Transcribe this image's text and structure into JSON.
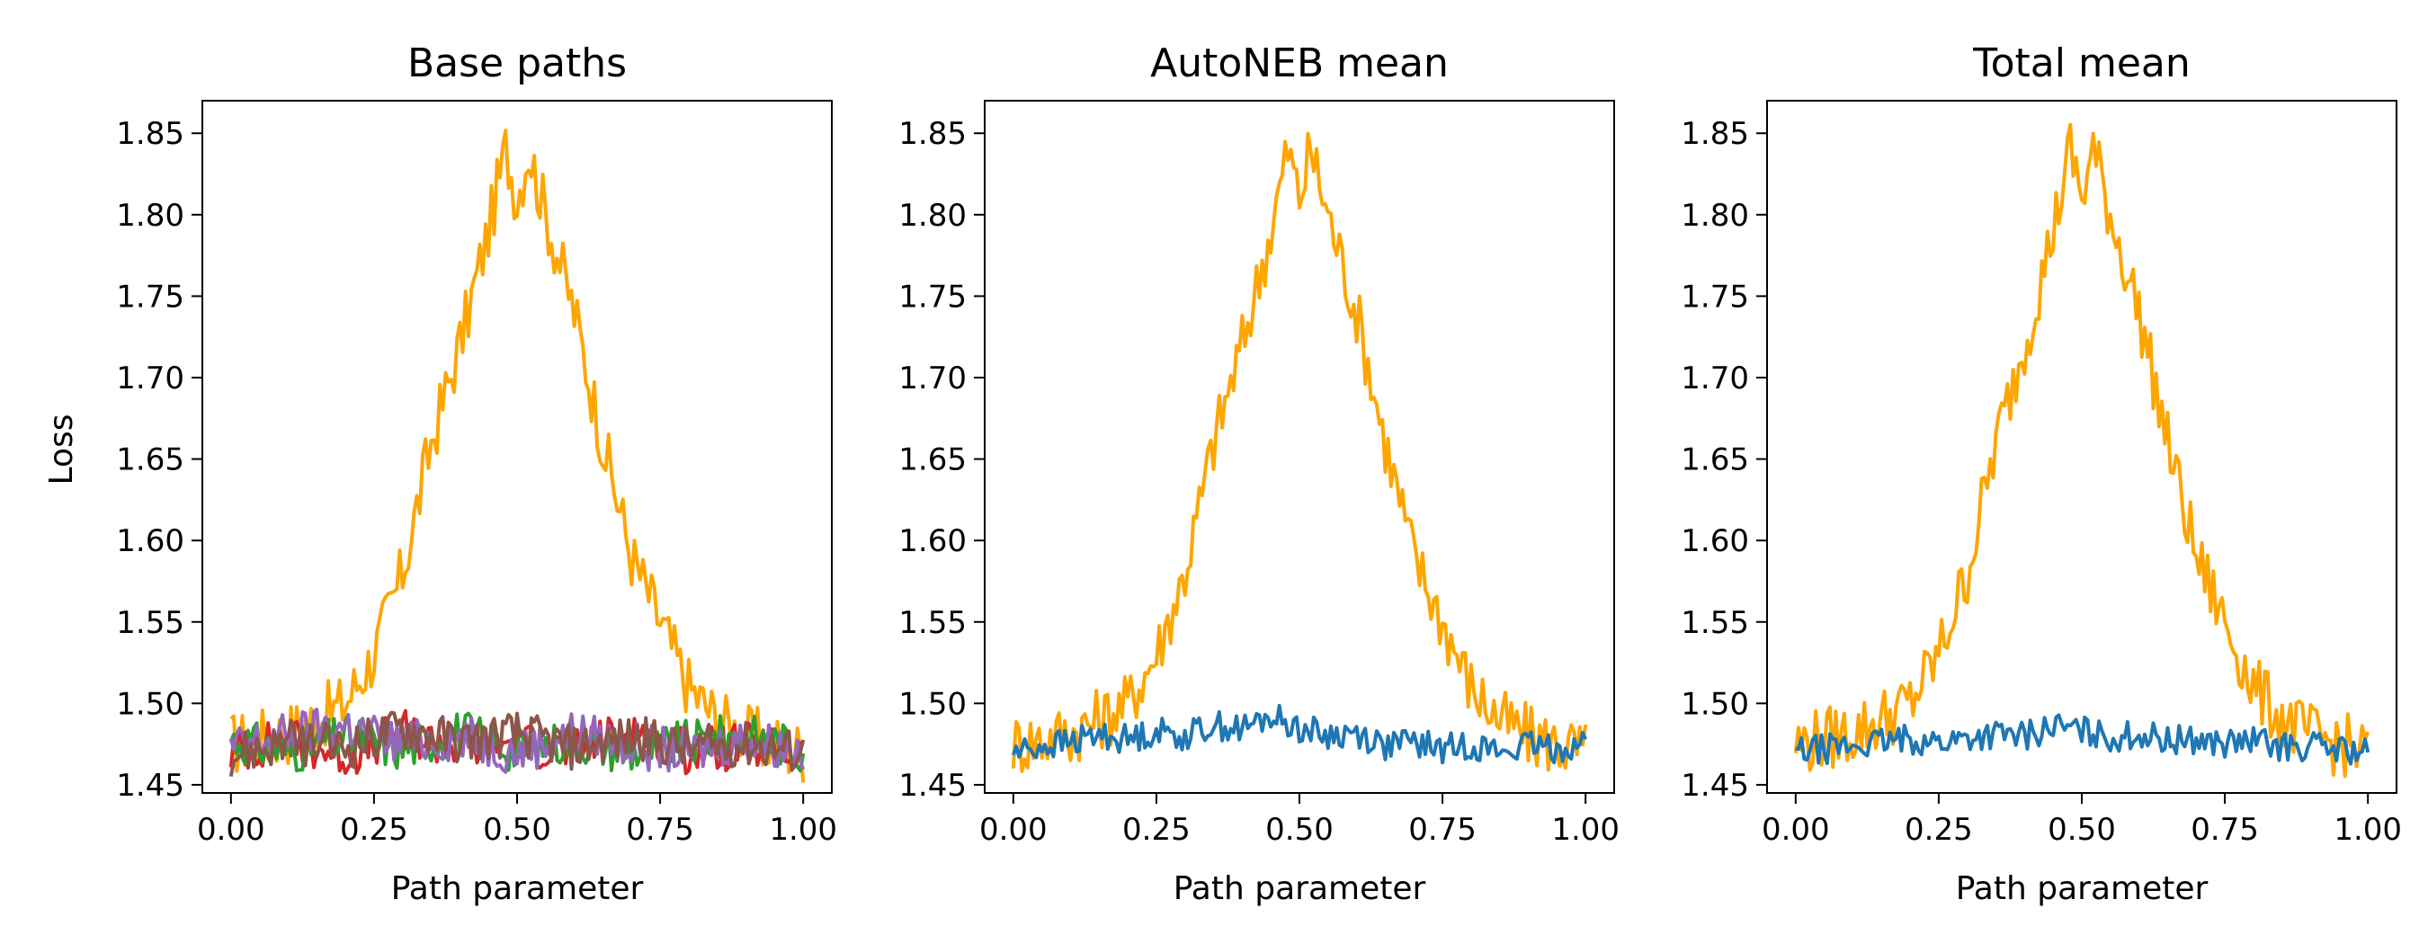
{
  "figure": {
    "ylabel": "Loss"
  },
  "chart_data": [
    {
      "type": "line",
      "title": "Base paths",
      "xlabel": "Path parameter",
      "ylabel": "Loss",
      "xlim": [
        -0.05,
        1.05
      ],
      "ylim": [
        1.445,
        1.87
      ],
      "xticks": [
        "0.00",
        "0.25",
        "0.50",
        "0.75",
        "1.00"
      ],
      "yticks": [
        "1.45",
        "1.50",
        "1.55",
        "1.60",
        "1.65",
        "1.70",
        "1.75",
        "1.80",
        "1.85"
      ],
      "grid": false,
      "series": [
        {
          "color": "#ffa500",
          "x": [
            0.0,
            0.05,
            0.1,
            0.15,
            0.2,
            0.25,
            0.3,
            0.35,
            0.4,
            0.45,
            0.48,
            0.5,
            0.52,
            0.55,
            0.6,
            0.65,
            0.7,
            0.75,
            0.8,
            0.85,
            0.9,
            0.95,
            1.0
          ],
          "y": [
            1.475,
            1.478,
            1.482,
            1.49,
            1.5,
            1.53,
            1.58,
            1.66,
            1.72,
            1.79,
            1.84,
            1.81,
            1.84,
            1.8,
            1.74,
            1.66,
            1.59,
            1.55,
            1.51,
            1.49,
            1.48,
            1.475,
            1.47
          ]
        },
        {
          "color": "#d62728",
          "x": [
            0.0,
            0.1,
            0.2,
            0.3,
            0.4,
            0.5,
            0.6,
            0.7,
            0.8,
            0.9,
            1.0
          ],
          "y": [
            1.47,
            1.478,
            1.468,
            1.482,
            1.472,
            1.476,
            1.47,
            1.485,
            1.47,
            1.474,
            1.468
          ]
        },
        {
          "color": "#2ca02c",
          "x": [
            0.0,
            0.1,
            0.2,
            0.3,
            0.4,
            0.5,
            0.6,
            0.7,
            0.8,
            0.9,
            1.0
          ],
          "y": [
            1.478,
            1.47,
            1.48,
            1.472,
            1.483,
            1.471,
            1.478,
            1.47,
            1.476,
            1.481,
            1.472
          ]
        },
        {
          "color": "#9467bd",
          "x": [
            0.0,
            0.1,
            0.2,
            0.3,
            0.4,
            0.5,
            0.6,
            0.7,
            0.8,
            0.9,
            1.0
          ],
          "y": [
            1.472,
            1.481,
            1.486,
            1.476,
            1.479,
            1.47,
            1.482,
            1.474,
            1.47,
            1.478,
            1.471
          ]
        },
        {
          "color": "#8c564b",
          "x": [
            0.0,
            0.1,
            0.2,
            0.3,
            0.4,
            0.5,
            0.6,
            0.7,
            0.8,
            0.9,
            1.0
          ],
          "y": [
            1.469,
            1.476,
            1.473,
            1.485,
            1.477,
            1.482,
            1.473,
            1.479,
            1.472,
            1.475,
            1.47
          ]
        }
      ]
    },
    {
      "type": "line",
      "title": "AutoNEB mean",
      "xlabel": "Path parameter",
      "xlim": [
        -0.05,
        1.05
      ],
      "ylim": [
        1.445,
        1.87
      ],
      "xticks": [
        "0.00",
        "0.25",
        "0.50",
        "0.75",
        "1.00"
      ],
      "yticks": [
        "1.45",
        "1.50",
        "1.55",
        "1.60",
        "1.65",
        "1.70",
        "1.75",
        "1.80",
        "1.85"
      ],
      "grid": false,
      "series": [
        {
          "color": "#ffa500",
          "x": [
            0.0,
            0.05,
            0.1,
            0.15,
            0.2,
            0.25,
            0.3,
            0.35,
            0.4,
            0.45,
            0.48,
            0.5,
            0.52,
            0.55,
            0.6,
            0.65,
            0.7,
            0.75,
            0.8,
            0.85,
            0.9,
            0.95,
            1.0
          ],
          "y": [
            1.475,
            1.478,
            1.482,
            1.49,
            1.5,
            1.53,
            1.58,
            1.66,
            1.72,
            1.79,
            1.84,
            1.81,
            1.84,
            1.8,
            1.74,
            1.66,
            1.59,
            1.55,
            1.51,
            1.49,
            1.48,
            1.475,
            1.47
          ]
        },
        {
          "color": "#1f77b4",
          "x": [
            0.0,
            0.05,
            0.1,
            0.15,
            0.2,
            0.25,
            0.3,
            0.35,
            0.4,
            0.45,
            0.5,
            0.55,
            0.6,
            0.65,
            0.7,
            0.75,
            0.8,
            0.85,
            0.9,
            0.95,
            1.0
          ],
          "y": [
            1.47,
            1.474,
            1.476,
            1.481,
            1.478,
            1.483,
            1.48,
            1.487,
            1.484,
            1.492,
            1.485,
            1.48,
            1.482,
            1.474,
            1.476,
            1.472,
            1.475,
            1.47,
            1.474,
            1.472,
            1.476
          ]
        }
      ]
    },
    {
      "type": "line",
      "title": "Total mean",
      "xlabel": "Path parameter",
      "xlim": [
        -0.05,
        1.05
      ],
      "ylim": [
        1.445,
        1.87
      ],
      "xticks": [
        "0.00",
        "0.25",
        "0.50",
        "0.75",
        "1.00"
      ],
      "yticks": [
        "1.45",
        "1.50",
        "1.55",
        "1.60",
        "1.65",
        "1.70",
        "1.75",
        "1.80",
        "1.85"
      ],
      "grid": false,
      "series": [
        {
          "color": "#ffa500",
          "x": [
            0.0,
            0.05,
            0.1,
            0.15,
            0.2,
            0.25,
            0.3,
            0.35,
            0.4,
            0.45,
            0.48,
            0.5,
            0.52,
            0.55,
            0.6,
            0.65,
            0.7,
            0.75,
            0.8,
            0.85,
            0.9,
            0.95,
            1.0
          ],
          "y": [
            1.475,
            1.478,
            1.482,
            1.49,
            1.5,
            1.53,
            1.58,
            1.66,
            1.72,
            1.79,
            1.84,
            1.81,
            1.84,
            1.8,
            1.74,
            1.66,
            1.59,
            1.55,
            1.51,
            1.49,
            1.48,
            1.475,
            1.47
          ]
        },
        {
          "color": "#1f77b4",
          "x": [
            0.0,
            0.05,
            0.1,
            0.15,
            0.2,
            0.25,
            0.3,
            0.35,
            0.4,
            0.45,
            0.5,
            0.55,
            0.6,
            0.65,
            0.7,
            0.75,
            0.8,
            0.85,
            0.9,
            0.95,
            1.0
          ],
          "y": [
            1.47,
            1.472,
            1.474,
            1.476,
            1.478,
            1.476,
            1.479,
            1.481,
            1.48,
            1.486,
            1.483,
            1.479,
            1.481,
            1.477,
            1.478,
            1.475,
            1.477,
            1.473,
            1.474,
            1.472,
            1.47
          ]
        }
      ]
    }
  ]
}
